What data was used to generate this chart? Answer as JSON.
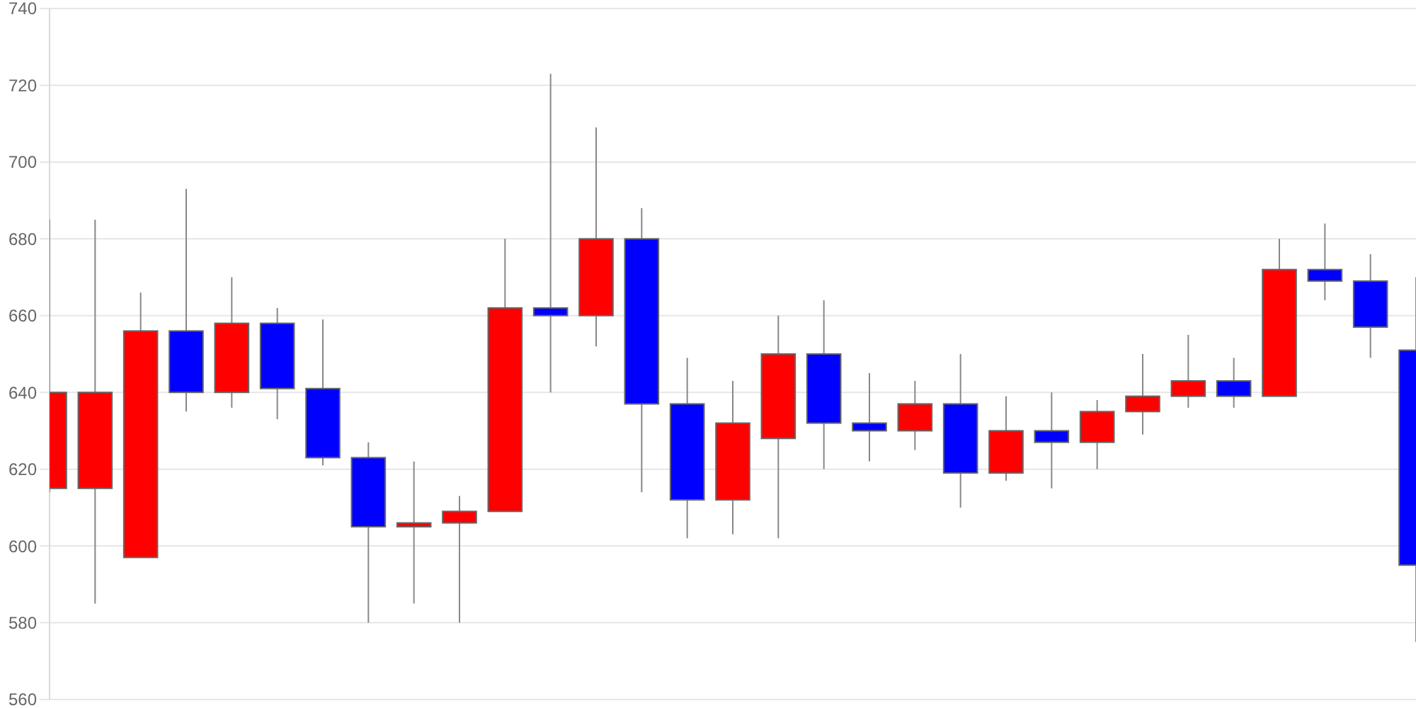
{
  "chart_data": {
    "type": "candlestick",
    "categories": [
      null,
      null,
      null,
      null,
      null,
      null,
      null,
      null,
      null,
      null,
      null,
      null,
      null,
      null,
      null,
      null,
      null,
      null,
      null,
      null,
      null,
      null,
      null,
      null,
      null,
      null,
      null,
      null,
      null,
      null,
      null
    ],
    "ohlc": [
      [
        615,
        685,
        614,
        640
      ],
      [
        615,
        685,
        585,
        640
      ],
      [
        597,
        666,
        597,
        656
      ],
      [
        656,
        693,
        635,
        640
      ],
      [
        640,
        670,
        636,
        658
      ],
      [
        658,
        662,
        633,
        641
      ],
      [
        641,
        659,
        621,
        623
      ],
      [
        623,
        627,
        580,
        605
      ],
      [
        605,
        622,
        585,
        606
      ],
      [
        606,
        613,
        580,
        609
      ],
      [
        609,
        680,
        609,
        662
      ],
      [
        662,
        723,
        640,
        660
      ],
      [
        660,
        709,
        652,
        680
      ],
      [
        680,
        688,
        614,
        637
      ],
      [
        637,
        649,
        602,
        612
      ],
      [
        612,
        643,
        603,
        632
      ],
      [
        628,
        660,
        602,
        650
      ],
      [
        650,
        664,
        620,
        632
      ],
      [
        632,
        645,
        622,
        630
      ],
      [
        630,
        643,
        625,
        637
      ],
      [
        637,
        650,
        610,
        619
      ],
      [
        619,
        639,
        617,
        630
      ],
      [
        630,
        640,
        615,
        627
      ],
      [
        627,
        638,
        620,
        635
      ],
      [
        635,
        650,
        629,
        639
      ],
      [
        639,
        655,
        636,
        643
      ],
      [
        643,
        649,
        636,
        639
      ],
      [
        639,
        680,
        639,
        672
      ],
      [
        672,
        684,
        664,
        669
      ],
      [
        669,
        676,
        649,
        657
      ],
      [
        651,
        670,
        575,
        595
      ]
    ],
    "colors": [
      "#ff0000",
      "#ff0000",
      "#ff0000",
      "#0000ff",
      "#ff0000",
      "#0000ff",
      "#0000ff",
      "#0000ff",
      "#ff0000",
      "#ff0000",
      "#ff0000",
      "#0000ff",
      "#ff0000",
      "#0000ff",
      "#0000ff",
      "#ff0000",
      "#ff0000",
      "#0000ff",
      "#0000ff",
      "#ff0000",
      "#0000ff",
      "#ff0000",
      "#0000ff",
      "#ff0000",
      "#ff0000",
      "#ff0000",
      "#0000ff",
      "#ff0000",
      "#0000ff",
      "#0000ff",
      "#0000ff"
    ],
    "ylim": [
      560,
      740
    ],
    "yticks": [
      560,
      580,
      600,
      620,
      640,
      660,
      680,
      700,
      720,
      740
    ],
    "grid": "y",
    "tick_labels": "y"
  }
}
